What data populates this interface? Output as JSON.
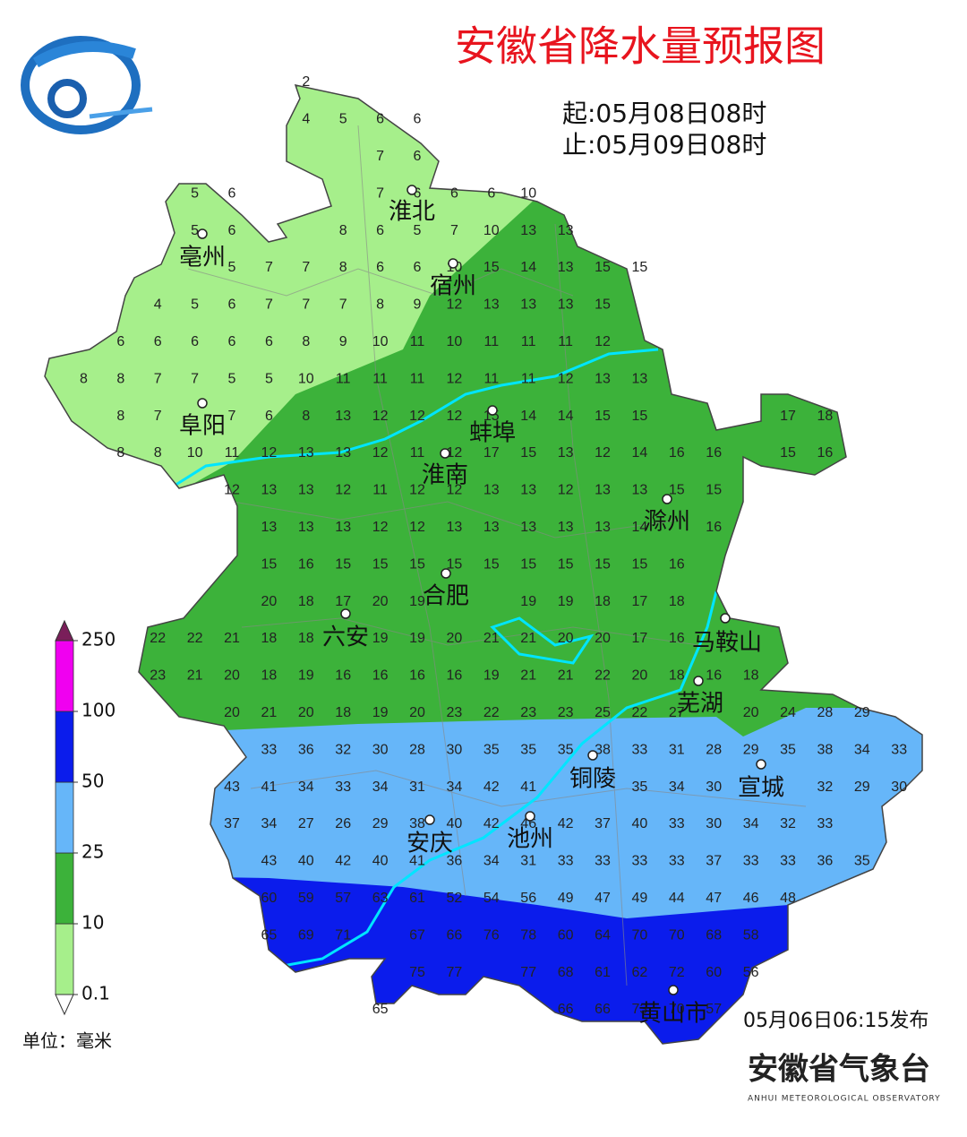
{
  "header": {
    "title": "安徽省降水量预报图",
    "start": "起:05月08日08时",
    "end": "止:05月09日08时"
  },
  "legend": {
    "levels": [
      0.1,
      10,
      25,
      50,
      100,
      250
    ],
    "colors": [
      "#a6ef8b",
      "#3cb23a",
      "#66b6f9",
      "#0b1cec",
      "#f000f0"
    ],
    "unit": "单位：毫米"
  },
  "cities": [
    "淮北",
    "亳州",
    "宿州",
    "阜阳",
    "蚌埠",
    "淮南",
    "滁州",
    "合肥",
    "六安",
    "马鞍山",
    "芜湖",
    "铜陵",
    "宣城",
    "安庆",
    "池州",
    "黄山市"
  ],
  "grid": {
    "rows": [
      [
        null,
        null,
        null,
        null,
        null,
        null,
        null,
        2,
        null,
        null,
        null,
        null,
        null,
        null,
        null,
        null,
        null,
        null,
        null,
        null,
        null,
        null,
        null,
        null
      ],
      [
        null,
        null,
        null,
        null,
        null,
        null,
        null,
        4,
        5,
        6,
        6,
        null,
        null,
        null,
        null,
        null,
        null,
        null,
        null,
        null,
        null,
        null,
        null,
        null
      ],
      [
        null,
        null,
        null,
        null,
        null,
        null,
        null,
        null,
        null,
        7,
        6,
        null,
        null,
        null,
        null,
        null,
        null,
        null,
        null,
        null,
        null,
        null,
        null,
        null
      ],
      [
        null,
        null,
        null,
        null,
        5,
        6,
        null,
        null,
        null,
        7,
        6,
        6,
        6,
        10,
        null,
        null,
        null,
        null,
        null,
        null,
        null,
        null,
        null,
        null
      ],
      [
        null,
        null,
        null,
        null,
        5,
        6,
        null,
        null,
        8,
        6,
        5,
        7,
        10,
        13,
        13,
        null,
        null,
        null,
        null,
        null,
        null,
        null,
        null,
        null
      ],
      [
        null,
        null,
        null,
        null,
        null,
        5,
        7,
        7,
        8,
        6,
        6,
        10,
        15,
        14,
        13,
        15,
        15,
        null,
        null,
        null,
        null,
        null,
        null,
        null
      ],
      [
        null,
        null,
        null,
        4,
        5,
        6,
        7,
        7,
        7,
        8,
        9,
        12,
        13,
        13,
        13,
        15,
        null,
        null,
        null,
        null,
        null,
        null,
        null,
        null
      ],
      [
        null,
        null,
        6,
        6,
        6,
        6,
        6,
        8,
        9,
        10,
        11,
        10,
        11,
        11,
        11,
        12,
        null,
        null,
        null,
        null,
        null,
        null,
        null,
        null
      ],
      [
        null,
        8,
        8,
        7,
        7,
        5,
        5,
        10,
        11,
        11,
        11,
        12,
        11,
        11,
        12,
        13,
        13,
        null,
        null,
        null,
        null,
        null,
        null,
        null
      ],
      [
        null,
        null,
        8,
        7,
        null,
        7,
        6,
        8,
        13,
        12,
        12,
        12,
        15,
        14,
        14,
        15,
        15,
        null,
        null,
        null,
        17,
        18,
        null,
        null
      ],
      [
        null,
        null,
        8,
        8,
        10,
        11,
        12,
        13,
        13,
        12,
        11,
        12,
        17,
        15,
        13,
        12,
        14,
        16,
        16,
        null,
        15,
        16,
        null,
        null
      ],
      [
        null,
        null,
        null,
        null,
        null,
        12,
        13,
        13,
        12,
        11,
        12,
        12,
        13,
        13,
        12,
        13,
        13,
        15,
        15,
        null,
        null,
        null,
        null,
        null
      ],
      [
        null,
        null,
        null,
        null,
        null,
        null,
        13,
        13,
        13,
        12,
        12,
        13,
        13,
        13,
        13,
        13,
        14,
        null,
        16,
        null,
        null,
        null,
        null,
        null
      ],
      [
        null,
        null,
        null,
        null,
        null,
        null,
        15,
        16,
        15,
        15,
        15,
        15,
        15,
        15,
        15,
        15,
        15,
        16,
        null,
        null,
        null,
        null,
        null,
        null
      ],
      [
        null,
        null,
        null,
        null,
        null,
        null,
        20,
        18,
        17,
        20,
        19,
        null,
        null,
        19,
        19,
        18,
        17,
        18,
        null,
        null,
        null,
        null,
        null,
        null
      ],
      [
        null,
        null,
        null,
        22,
        22,
        21,
        18,
        18,
        null,
        19,
        19,
        20,
        21,
        21,
        20,
        20,
        17,
        16,
        null,
        null,
        null,
        null,
        null,
        null
      ],
      [
        null,
        null,
        null,
        23,
        21,
        20,
        18,
        19,
        16,
        16,
        16,
        16,
        19,
        21,
        21,
        22,
        20,
        18,
        16,
        18,
        null,
        null,
        null,
        null
      ],
      [
        null,
        null,
        null,
        null,
        null,
        20,
        21,
        20,
        18,
        19,
        20,
        23,
        22,
        23,
        23,
        25,
        22,
        27,
        null,
        20,
        24,
        28,
        29,
        null
      ],
      [
        null,
        null,
        null,
        null,
        null,
        null,
        33,
        36,
        32,
        30,
        28,
        30,
        35,
        35,
        35,
        38,
        33,
        31,
        28,
        29,
        35,
        38,
        34,
        33
      ],
      [
        null,
        null,
        null,
        null,
        null,
        43,
        41,
        34,
        33,
        34,
        31,
        34,
        42,
        41,
        null,
        null,
        35,
        34,
        30,
        null,
        null,
        32,
        29,
        30
      ],
      [
        null,
        null,
        null,
        null,
        null,
        37,
        34,
        27,
        26,
        29,
        38,
        40,
        42,
        46,
        42,
        37,
        40,
        33,
        30,
        34,
        32,
        33,
        null,
        null
      ],
      [
        null,
        null,
        null,
        null,
        null,
        null,
        43,
        40,
        42,
        40,
        41,
        36,
        34,
        31,
        33,
        33,
        33,
        33,
        37,
        33,
        33,
        36,
        35,
        null
      ],
      [
        null,
        null,
        null,
        null,
        null,
        null,
        60,
        59,
        57,
        63,
        61,
        52,
        54,
        56,
        49,
        47,
        49,
        44,
        47,
        46,
        48,
        null,
        null,
        null
      ],
      [
        null,
        null,
        null,
        null,
        null,
        null,
        65,
        69,
        71,
        null,
        67,
        66,
        76,
        78,
        60,
        64,
        70,
        70,
        68,
        58,
        null,
        null,
        null,
        null
      ],
      [
        null,
        null,
        null,
        null,
        null,
        null,
        null,
        null,
        null,
        null,
        75,
        77,
        null,
        77,
        68,
        61,
        62,
        72,
        60,
        56,
        null,
        null,
        null,
        null
      ],
      [
        null,
        null,
        null,
        null,
        null,
        null,
        null,
        null,
        null,
        65,
        null,
        null,
        null,
        null,
        66,
        66,
        73,
        70,
        57,
        null,
        null,
        null,
        null,
        null
      ]
    ]
  },
  "footer": {
    "issued": "05月06日06:15发布",
    "agency": "安徽省气象台",
    "agency_en": "ANHUI METEOROLOGICAL OBSERVATORY"
  }
}
